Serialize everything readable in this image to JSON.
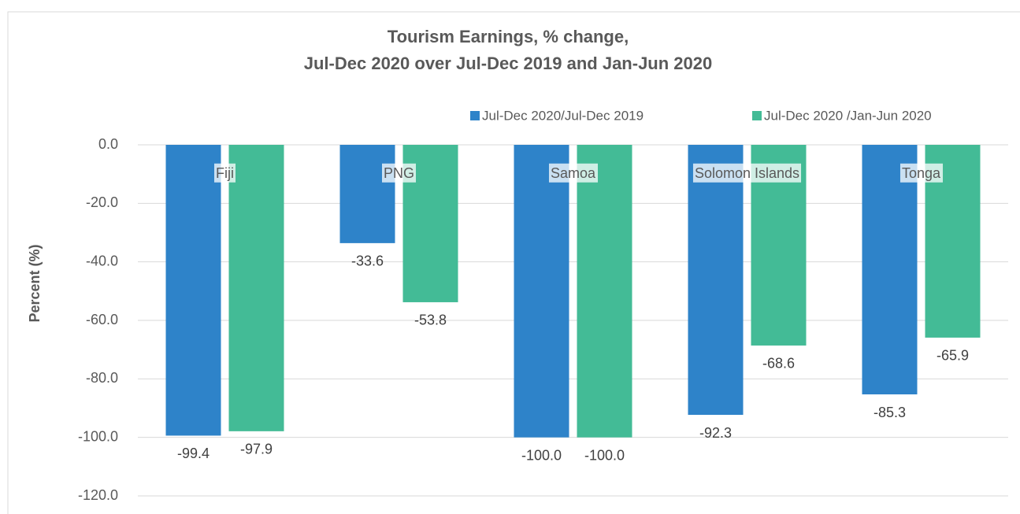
{
  "chart_data": {
    "type": "bar",
    "title": [
      "Tourism Earnings, % change,",
      "Jul-Dec 2020 over Jul-Dec 2019 and Jan-Jun 2020"
    ],
    "y_label": "Percent (%)",
    "categories": [
      "Fiji",
      "PNG",
      "Samoa",
      "Solomon Islands",
      "Tonga"
    ],
    "series": [
      {
        "name": "Jul-Dec 2020/Jul-Dec 2019",
        "color": "#2e83c9",
        "values": [
          -99.4,
          -33.6,
          -100,
          -92.3,
          -85.3
        ],
        "value_labels": [
          "-99.4",
          "-33.6",
          "-100.0",
          "-92.3",
          "-85.3"
        ]
      },
      {
        "name": "Jul-Dec 2020 /Jan-Jun 2020",
        "color": "#43bb96",
        "values": [
          -97.9,
          -53.8,
          -100,
          -68.6,
          -65.9
        ],
        "value_labels": [
          "-97.9",
          "-53.8",
          "-100.0",
          "-68.6",
          "-65.9"
        ]
      }
    ],
    "ylim": [
      -120,
      0
    ],
    "yticks": [
      {
        "value": 0,
        "label": "0.0"
      },
      {
        "value": -20,
        "label": "-20.0"
      },
      {
        "value": -40,
        "label": "-40.0"
      },
      {
        "value": -60,
        "label": "-60.0"
      },
      {
        "value": -80,
        "label": "-80.0"
      },
      {
        "value": -100,
        "label": "-100.0"
      },
      {
        "value": -120,
        "label": "-120.0"
      }
    ],
    "grid": true,
    "legend": "top-right"
  }
}
